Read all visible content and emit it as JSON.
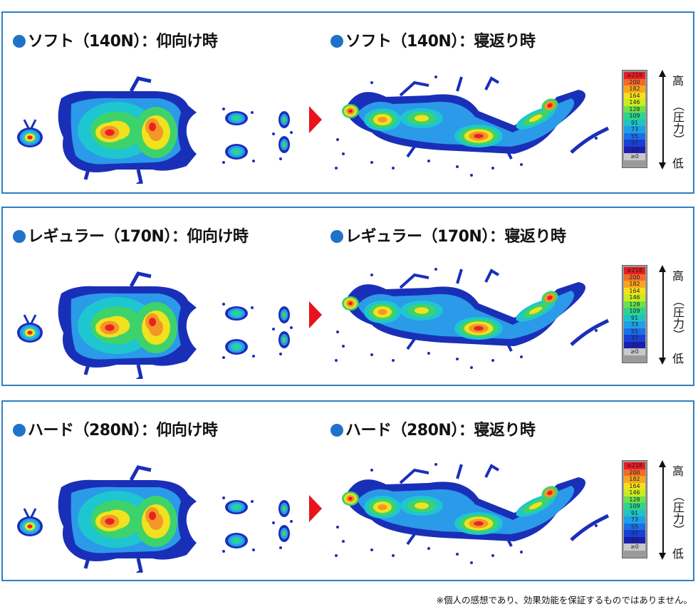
{
  "panels": [
    {
      "left_title": "ソフト（140N）：仰向け時",
      "right_title": "ソフト（140N）：寝返り時"
    },
    {
      "left_title": "レギュラー（170N）：仰向け時",
      "right_title": "レギュラー（170N）：寝返り時"
    },
    {
      "left_title": "ハード（280N）：仰向け時",
      "right_title": "ハード（280N）：寝返り時"
    }
  ],
  "legend": {
    "values": [
      "≥218",
      "200",
      "182",
      "164",
      "146",
      "128",
      "109",
      "91",
      "73",
      "55",
      "37",
      "19",
      "≥0"
    ],
    "colors": [
      "#e81c24",
      "#f2692a",
      "#f7a51e",
      "#f7e01a",
      "#c8ec1c",
      "#6ee04a",
      "#2ed38c",
      "#1ec4c4",
      "#1f9fe6",
      "#1b6fe8",
      "#1940d4",
      "#1a1fb0",
      "#c9c9c9"
    ]
  },
  "scale": {
    "high": "高",
    "mid": "（圧力）",
    "low": "低"
  },
  "note": "※個人の感想であり、効果効能を保証するものではありません。",
  "heat_colors": {
    "blue": "#1a2fb8",
    "lightblue": "#2b9ae8",
    "cyan": "#1ec6d0",
    "green": "#3ed36a",
    "yellow": "#f0e21e",
    "orange": "#f4962a",
    "red": "#e8231e"
  }
}
